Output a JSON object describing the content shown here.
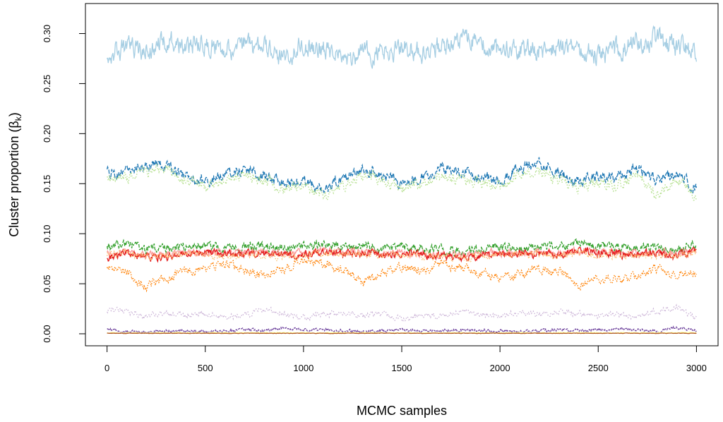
{
  "chart_data": {
    "type": "line",
    "title": "",
    "xlabel": "MCMC samples",
    "ylabel": "Cluster proportion (β",
    "ylabel_sub": "k",
    "ylabel_close": ")",
    "xlim": [
      -110,
      3110
    ],
    "ylim": [
      -0.012,
      0.33
    ],
    "x_ticks": [
      0,
      500,
      1000,
      1500,
      2000,
      2500,
      3000
    ],
    "x_tick_labels": [
      "0",
      "500",
      "1000",
      "1500",
      "2000",
      "2500",
      "3000"
    ],
    "y_ticks": [
      0.0,
      0.05,
      0.1,
      0.15,
      0.2,
      0.25,
      0.3
    ],
    "y_tick_labels": [
      "0.00",
      "0.05",
      "0.10",
      "0.15",
      "0.20",
      "0.25",
      "0.30"
    ],
    "grid": false,
    "legend": "none",
    "n_samples": 3000,
    "series": [
      {
        "color": "#a6cee3",
        "dash": "solid",
        "noise": 0.0085,
        "x": [
          0,
          100,
          200,
          300,
          400,
          500,
          600,
          700,
          800,
          900,
          1000,
          1100,
          1200,
          1300,
          1400,
          1500,
          1600,
          1700,
          1800,
          1900,
          2000,
          2100,
          2200,
          2300,
          2400,
          2500,
          2600,
          2700,
          2800,
          2900,
          3000
        ],
        "y": [
          0.281,
          0.285,
          0.283,
          0.292,
          0.287,
          0.289,
          0.286,
          0.288,
          0.285,
          0.279,
          0.287,
          0.286,
          0.275,
          0.279,
          0.283,
          0.285,
          0.281,
          0.288,
          0.296,
          0.289,
          0.282,
          0.284,
          0.283,
          0.287,
          0.283,
          0.279,
          0.284,
          0.29,
          0.294,
          0.286,
          0.281
        ]
      },
      {
        "color": "#1f78b4",
        "dash": "6,2",
        "noise": 0.0045,
        "x": [
          0,
          100,
          200,
          300,
          400,
          500,
          600,
          700,
          800,
          900,
          1000,
          1100,
          1200,
          1300,
          1400,
          1500,
          1600,
          1700,
          1800,
          1900,
          2000,
          2100,
          2200,
          2300,
          2400,
          2500,
          2600,
          2700,
          2800,
          2900,
          3000
        ],
        "y": [
          0.16,
          0.162,
          0.168,
          0.17,
          0.158,
          0.152,
          0.16,
          0.163,
          0.158,
          0.15,
          0.153,
          0.143,
          0.155,
          0.165,
          0.158,
          0.151,
          0.157,
          0.165,
          0.162,
          0.157,
          0.153,
          0.166,
          0.17,
          0.161,
          0.153,
          0.158,
          0.157,
          0.165,
          0.154,
          0.16,
          0.147
        ]
      },
      {
        "color": "#b2df8a",
        "dash": "1.5,2.5",
        "noise": 0.0045,
        "x": [
          0,
          100,
          200,
          300,
          400,
          500,
          600,
          700,
          800,
          900,
          1000,
          1100,
          1200,
          1300,
          1400,
          1500,
          1600,
          1700,
          1800,
          1900,
          2000,
          2100,
          2200,
          2300,
          2400,
          2500,
          2600,
          2700,
          2800,
          2900,
          3000
        ],
        "y": [
          0.154,
          0.156,
          0.162,
          0.165,
          0.152,
          0.147,
          0.154,
          0.157,
          0.153,
          0.144,
          0.148,
          0.138,
          0.149,
          0.159,
          0.152,
          0.145,
          0.15,
          0.158,
          0.155,
          0.15,
          0.147,
          0.16,
          0.163,
          0.154,
          0.147,
          0.15,
          0.148,
          0.157,
          0.139,
          0.153,
          0.138
        ]
      },
      {
        "color": "#33a02c",
        "dash": "5,2",
        "noise": 0.0035,
        "x": [
          0,
          100,
          200,
          300,
          400,
          500,
          600,
          700,
          800,
          900,
          1000,
          1100,
          1200,
          1300,
          1400,
          1500,
          1600,
          1700,
          1800,
          1900,
          2000,
          2100,
          2200,
          2300,
          2400,
          2500,
          2600,
          2700,
          2800,
          2900,
          3000
        ],
        "y": [
          0.086,
          0.09,
          0.084,
          0.086,
          0.087,
          0.088,
          0.085,
          0.086,
          0.087,
          0.086,
          0.087,
          0.09,
          0.087,
          0.088,
          0.086,
          0.087,
          0.086,
          0.084,
          0.082,
          0.085,
          0.087,
          0.086,
          0.088,
          0.086,
          0.09,
          0.088,
          0.087,
          0.086,
          0.086,
          0.085,
          0.089
        ]
      },
      {
        "color": "#fb9a99",
        "dash": "solid",
        "noise": 0.003,
        "x": [
          0,
          100,
          200,
          300,
          400,
          500,
          600,
          700,
          800,
          900,
          1000,
          1100,
          1200,
          1300,
          1400,
          1500,
          1600,
          1700,
          1800,
          1900,
          2000,
          2100,
          2200,
          2300,
          2400,
          2500,
          2600,
          2700,
          2800,
          2900,
          3000
        ],
        "y": [
          0.081,
          0.082,
          0.079,
          0.08,
          0.081,
          0.082,
          0.08,
          0.081,
          0.081,
          0.08,
          0.081,
          0.083,
          0.081,
          0.082,
          0.08,
          0.081,
          0.08,
          0.079,
          0.078,
          0.08,
          0.081,
          0.081,
          0.082,
          0.08,
          0.083,
          0.082,
          0.081,
          0.08,
          0.081,
          0.08,
          0.083
        ]
      },
      {
        "color": "#e31a1c",
        "dash": "solid",
        "noise": 0.003,
        "x": [
          0,
          100,
          200,
          300,
          400,
          500,
          600,
          700,
          800,
          900,
          1000,
          1100,
          1200,
          1300,
          1400,
          1500,
          1600,
          1700,
          1800,
          1900,
          2000,
          2100,
          2200,
          2300,
          2400,
          2500,
          2600,
          2700,
          2800,
          2900,
          3000
        ],
        "y": [
          0.076,
          0.08,
          0.076,
          0.077,
          0.079,
          0.081,
          0.079,
          0.08,
          0.08,
          0.079,
          0.08,
          0.082,
          0.08,
          0.081,
          0.079,
          0.08,
          0.079,
          0.077,
          0.075,
          0.078,
          0.08,
          0.08,
          0.08,
          0.079,
          0.084,
          0.081,
          0.08,
          0.079,
          0.08,
          0.078,
          0.085
        ]
      },
      {
        "color": "#fdbf6f",
        "dash": "1.5,2",
        "noise": 0.003,
        "x": [
          0,
          100,
          200,
          300,
          400,
          500,
          600,
          700,
          800,
          900,
          1000,
          1100,
          1200,
          1300,
          1400,
          1500,
          1600,
          1700,
          1800,
          1900,
          2000,
          2100,
          2200,
          2300,
          2400,
          2500,
          2600,
          2700,
          2800,
          2900,
          3000
        ],
        "y": [
          0.079,
          0.08,
          0.077,
          0.078,
          0.079,
          0.08,
          0.078,
          0.079,
          0.079,
          0.078,
          0.079,
          0.081,
          0.079,
          0.08,
          0.078,
          0.079,
          0.078,
          0.077,
          0.076,
          0.078,
          0.079,
          0.079,
          0.08,
          0.078,
          0.081,
          0.08,
          0.079,
          0.078,
          0.079,
          0.078,
          0.081
        ]
      },
      {
        "color": "#ff7f00",
        "dash": "1.5,2",
        "noise": 0.0035,
        "x": [
          0,
          100,
          200,
          300,
          400,
          500,
          600,
          700,
          800,
          900,
          1000,
          1100,
          1200,
          1300,
          1400,
          1500,
          1600,
          1700,
          1800,
          1900,
          2000,
          2100,
          2200,
          2300,
          2400,
          2500,
          2600,
          2700,
          2800,
          2900,
          3000
        ],
        "y": [
          0.068,
          0.06,
          0.048,
          0.056,
          0.062,
          0.065,
          0.07,
          0.064,
          0.058,
          0.066,
          0.072,
          0.07,
          0.065,
          0.052,
          0.06,
          0.066,
          0.062,
          0.07,
          0.066,
          0.06,
          0.056,
          0.06,
          0.064,
          0.062,
          0.048,
          0.055,
          0.055,
          0.058,
          0.065,
          0.06,
          0.062
        ]
      },
      {
        "color": "#cab2d6",
        "dash": "1.5,2.5",
        "noise": 0.0022,
        "x": [
          0,
          100,
          200,
          300,
          400,
          500,
          600,
          700,
          800,
          900,
          1000,
          1100,
          1200,
          1300,
          1400,
          1500,
          1600,
          1700,
          1800,
          1900,
          2000,
          2100,
          2200,
          2300,
          2400,
          2500,
          2600,
          2700,
          2800,
          2900,
          3000
        ],
        "y": [
          0.024,
          0.022,
          0.018,
          0.021,
          0.019,
          0.02,
          0.017,
          0.019,
          0.024,
          0.02,
          0.016,
          0.019,
          0.021,
          0.018,
          0.02,
          0.015,
          0.019,
          0.018,
          0.022,
          0.02,
          0.018,
          0.021,
          0.019,
          0.022,
          0.02,
          0.018,
          0.02,
          0.017,
          0.022,
          0.026,
          0.016
        ]
      },
      {
        "color": "#6a3d9a",
        "dash": "3,1.5",
        "noise": 0.0012,
        "x": [
          0,
          100,
          200,
          300,
          400,
          500,
          600,
          700,
          800,
          900,
          1000,
          1100,
          1200,
          1300,
          1400,
          1500,
          1600,
          1700,
          1800,
          1900,
          2000,
          2100,
          2200,
          2300,
          2400,
          2500,
          2600,
          2700,
          2800,
          2900,
          3000
        ],
        "y": [
          0.004,
          0.003,
          0.002,
          0.003,
          0.003,
          0.002,
          0.003,
          0.004,
          0.003,
          0.006,
          0.004,
          0.004,
          0.003,
          0.002,
          0.003,
          0.004,
          0.003,
          0.003,
          0.004,
          0.003,
          0.003,
          0.002,
          0.003,
          0.004,
          0.003,
          0.004,
          0.005,
          0.004,
          0.003,
          0.006,
          0.003
        ]
      },
      {
        "color": "#ffff99",
        "dash": "solid",
        "noise": 0.0003,
        "x": [
          0,
          500,
          1000,
          1500,
          2000,
          2500,
          3000
        ],
        "y": [
          0.001,
          0.001,
          0.001,
          0.001,
          0.001,
          0.001,
          0.001
        ]
      },
      {
        "color": "#b15928",
        "dash": "solid",
        "noise": 0.0002,
        "x": [
          0,
          500,
          1000,
          1500,
          2000,
          2500,
          3000
        ],
        "y": [
          0.0005,
          0.0005,
          0.0005,
          0.0005,
          0.0005,
          0.0005,
          0.0005
        ]
      }
    ]
  }
}
